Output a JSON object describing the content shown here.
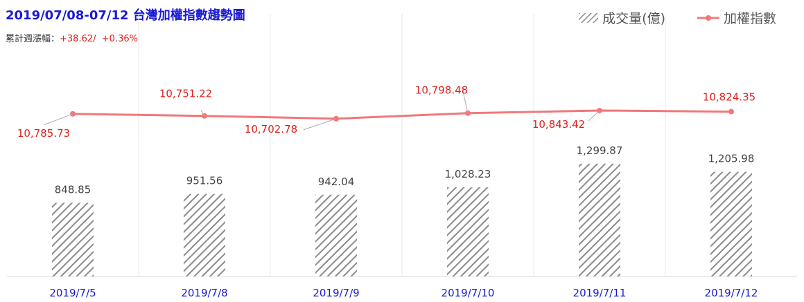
{
  "title": "2019/07/08-07/12 台灣加權指數趨勢圖",
  "subtitle": {
    "label": "累計週漲幅：",
    "change_points": "+38.62/",
    "change_percent": "+0.36%"
  },
  "legend": {
    "bar": "成交量(億)",
    "line": "加權指數"
  },
  "colors": {
    "title": "#1a1ad6",
    "line": "#f2777a",
    "line_label": "#e0201b",
    "bar_hatch": "#8a8a8a",
    "bar_label": "#444444",
    "axis_label": "#1a1ad6",
    "grid": "#e9e9e9"
  },
  "chart_data": {
    "type": "bar+line",
    "categories": [
      "2019/7/5",
      "2019/7/8",
      "2019/7/9",
      "2019/7/10",
      "2019/7/11",
      "2019/7/12"
    ],
    "series": [
      {
        "name": "成交量(億)",
        "type": "bar",
        "values": [
          848.85,
          951.56,
          942.04,
          1028.23,
          1299.87,
          1205.98
        ],
        "labels": [
          "848.85",
          "951.56",
          "942.04",
          "1,028.23",
          "1,299.87",
          "1,205.98"
        ]
      },
      {
        "name": "加權指數",
        "type": "line",
        "values": [
          10785.73,
          10751.22,
          10702.78,
          10798.48,
          10843.42,
          10824.35
        ],
        "labels": [
          "10,785.73",
          "10,751.22",
          "10,702.78",
          "10,798.48",
          "10,843.42",
          "10,824.35"
        ]
      }
    ],
    "grid": true
  }
}
